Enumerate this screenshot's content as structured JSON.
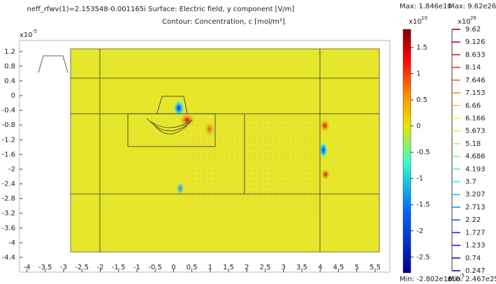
{
  "chart_data": {
    "type": "surface",
    "title": "neff_rfwv(1)=2.153548-0.001165i    Surface: Electric field, y component [V/m]",
    "subtitle": "Contour: Concentration, c [mol/m³]",
    "x_multiplier": "x10",
    "x_exponent": "-5",
    "y_multiplier": "x10",
    "y_exponent": "-5",
    "xlim": [
      -4.2,
      5.9
    ],
    "xticks": [
      -4,
      -3.5,
      -3,
      -2.5,
      -2,
      -1.5,
      -1,
      -0.5,
      0,
      0.5,
      1,
      1.5,
      2,
      2.5,
      3,
      3.5,
      4,
      4.5,
      5,
      5.5
    ],
    "ylim": [
      -4.8,
      1.5
    ],
    "yticks": [
      1.2,
      0.8,
      0.4,
      0,
      -0.4,
      -0.8,
      -1.2,
      -1.6,
      -2,
      -2.4,
      -2.8,
      -3.2,
      -3.6,
      -4,
      -4.4
    ],
    "colorbars": [
      {
        "max_label": "Max: 1.846e10",
        "min_label": "Min: -2.802e10",
        "multiplier": "x10",
        "exponent": "10",
        "clim": [
          -2.802,
          1.846
        ],
        "ticks": [
          1.5,
          1,
          0.5,
          0,
          -0.5,
          -1,
          -1.5,
          -2,
          -2.5
        ]
      },
      {
        "max_label": "Max: 9.62e26",
        "min_label": "Min: 2.467e25",
        "multiplier": "x10",
        "exponent": "26",
        "clim": [
          0.2467,
          9.62
        ],
        "ticks": [
          9.62,
          9.126,
          8.633,
          8.14,
          7.646,
          7.153,
          6.66,
          6.166,
          5.673,
          5.18,
          4.686,
          4.193,
          3.7,
          3.207,
          2.713,
          2.22,
          1.727,
          1.233,
          0.74,
          0.247
        ]
      }
    ]
  }
}
